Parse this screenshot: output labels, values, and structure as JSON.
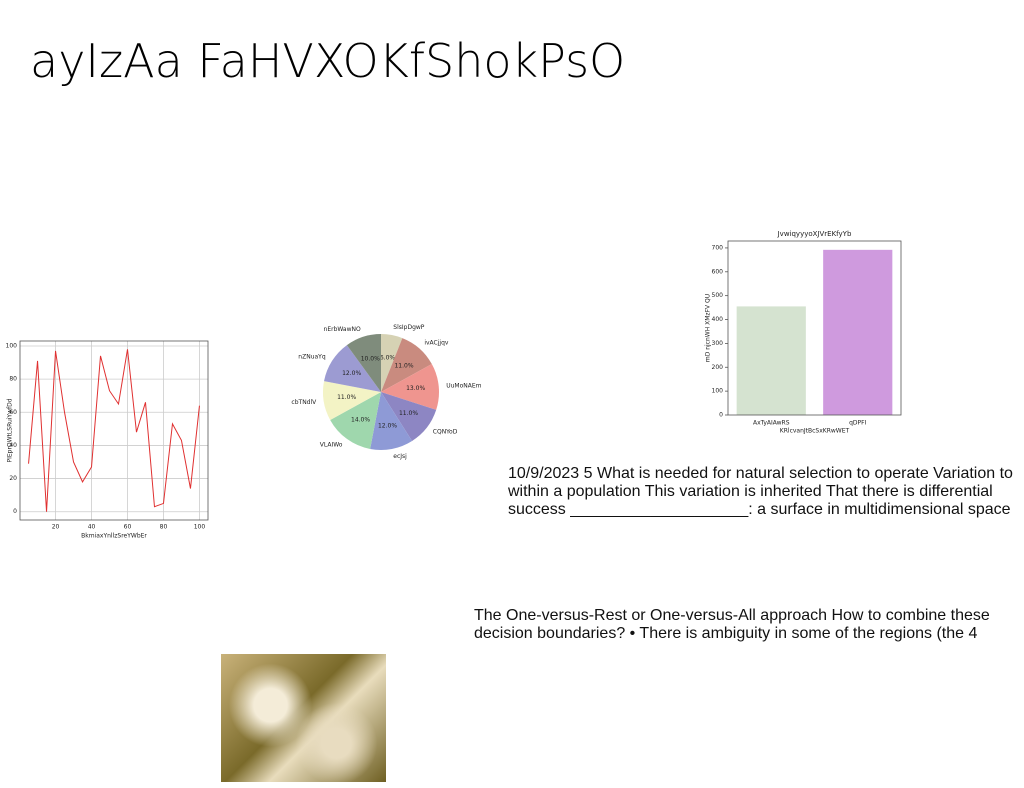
{
  "title": "ayIzAa FaHVXOKfShokPsO",
  "texts": [
    "10/9/2023 5 What is needed for natural selection to operate Variation to within a population This variation is inherited That there is differential success ____________________: a surface in multidimensional space",
    "The One-versus-Rest or One-versus-All approach How to combine these decision boundaries? • There is ambiguity in some of the regions (the 4"
  ],
  "chart_data": [
    {
      "type": "line",
      "xlabel": "BkmiaxYnllzSreYWbEr",
      "ylabel": "PIEprOWtLSRuiYwfDd",
      "color": "#e03030",
      "grid": true,
      "x": [
        5,
        10,
        15,
        20,
        25,
        30,
        35,
        40,
        45,
        50,
        55,
        60,
        65,
        70,
        75,
        80,
        85,
        90,
        95,
        100
      ],
      "values": [
        29,
        91,
        0,
        97,
        60,
        30,
        18,
        27,
        94,
        73,
        65,
        98,
        48,
        66,
        3,
        5,
        53,
        43,
        14,
        64
      ],
      "xlim": [
        0.25,
        104.75
      ],
      "ylim": [
        -5,
        103
      ],
      "xticks": [
        20,
        40,
        60,
        80,
        100
      ],
      "yticks": [
        0,
        20,
        40,
        60,
        80,
        100
      ]
    },
    {
      "type": "pie",
      "categories": [
        "SlsIpDgwP",
        "ivACjjqv",
        "UuMoNAEm",
        "CQNYoD",
        "ecJsj",
        "VLAIWo",
        "cbTNdlV",
        "nZNuaYq",
        "nErbWawNO"
      ],
      "values": [
        6,
        11,
        13,
        11,
        12,
        14,
        11,
        12,
        10
      ],
      "value_labels": [
        "6.0%",
        "11.0%",
        "13.0%",
        "11.0%",
        "12.0%",
        "14.0%",
        "11.0%",
        "12.0%",
        "10.0%"
      ],
      "colors": [
        "#d6d2b4",
        "#c98b7f",
        "#ef958f",
        "#8d86c3",
        "#8e9ad6",
        "#9fd7ad",
        "#f3f3c5",
        "#9c9bd2",
        "#7f8c7c"
      ]
    },
    {
      "type": "bar",
      "title": "JvwiqyyyoXJVrEKfyYb",
      "xlabel": "KRlcvanJtBcSxKRwWET",
      "ylabel": "mD njcnWH XMzFV QU",
      "categories": [
        "AxTyAIAwRS",
        "qDPFI"
      ],
      "values": [
        455,
        692
      ],
      "colors": [
        "#d5e3d0",
        "#cf9ade"
      ],
      "ylim": [
        0,
        729
      ],
      "yticks": [
        0,
        100,
        200,
        300,
        400,
        500,
        600,
        700
      ]
    }
  ]
}
